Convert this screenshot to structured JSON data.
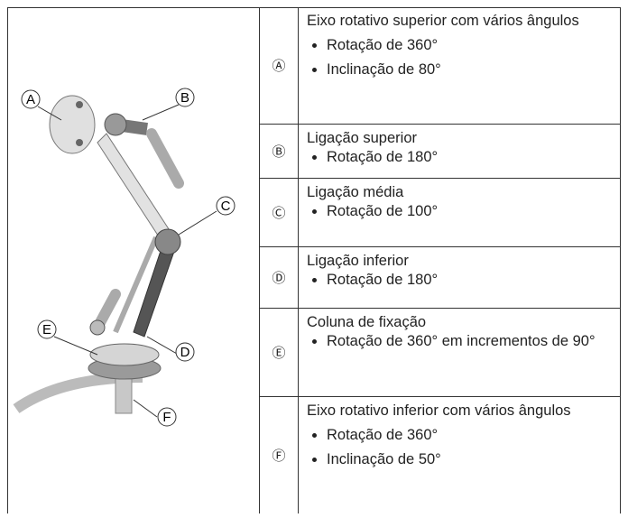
{
  "illustration": {
    "callouts": [
      "A",
      "B",
      "C",
      "D",
      "E",
      "F"
    ]
  },
  "table": {
    "rows": [
      {
        "marker": "Ⓐ",
        "title": "Eixo rotativo superior com vários ângulos",
        "items": [
          "Rotação de 360°",
          "Inclinação de 80°"
        ]
      },
      {
        "marker": "Ⓑ",
        "title": "Ligação superior",
        "items": [
          "Rotação de 180°"
        ]
      },
      {
        "marker": "Ⓒ",
        "title": "Ligação média",
        "items": [
          "Rotação de 100°"
        ]
      },
      {
        "marker": "Ⓓ",
        "title": "Ligação inferior",
        "items": [
          "Rotação de 180°"
        ]
      },
      {
        "marker": "Ⓔ",
        "title": "Coluna de fixação",
        "items": [
          "Rotação de 360° em incrementos de 90°"
        ]
      },
      {
        "marker": "Ⓕ",
        "title": "Eixo rotativo inferior com vários ângulos",
        "items": [
          "Rotação de 360°",
          "Inclinação de 50°"
        ]
      }
    ]
  }
}
